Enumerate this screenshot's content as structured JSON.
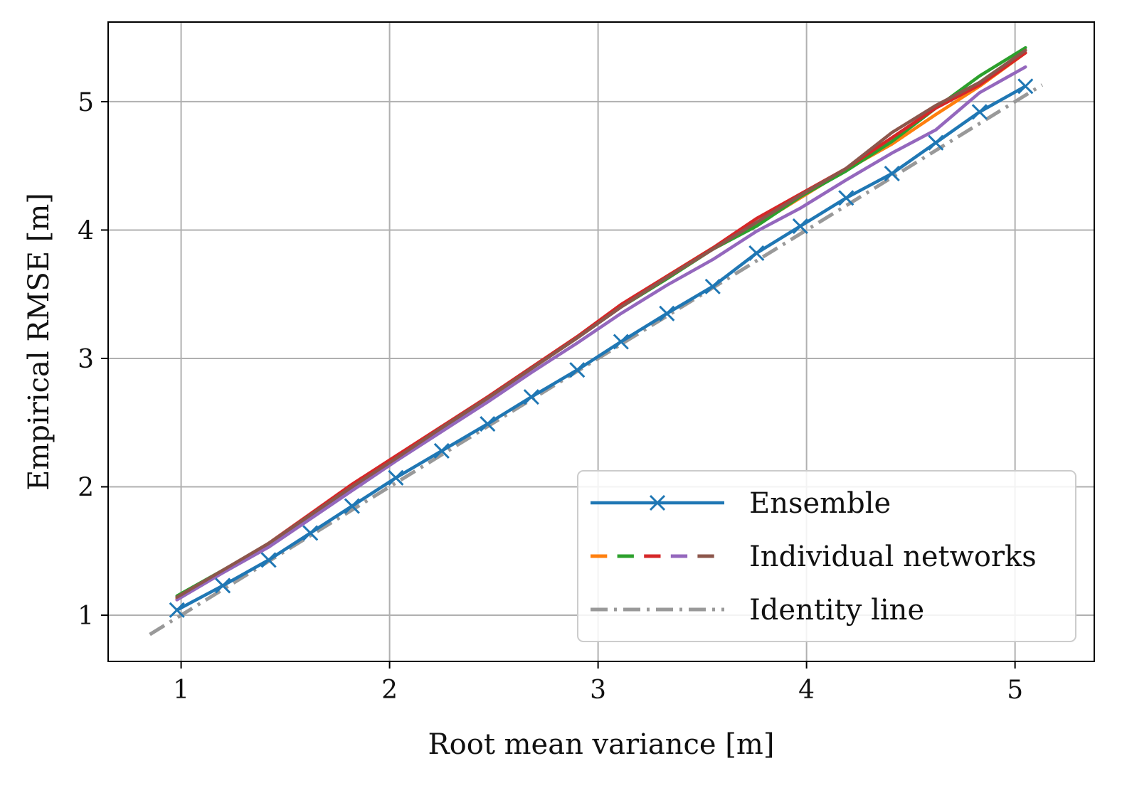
{
  "chart_data": {
    "type": "line",
    "xlabel": "Root mean variance [m]",
    "ylabel": "Empirical RMSE [m]",
    "xlim": [
      0.65,
      5.38
    ],
    "ylim": [
      0.64,
      5.62
    ],
    "xticks": [
      1,
      2,
      3,
      4,
      5
    ],
    "yticks": [
      1,
      2,
      3,
      4,
      5
    ],
    "xtick_labels": [
      "1",
      "2",
      "3",
      "4",
      "5"
    ],
    "ytick_labels": [
      "1",
      "2",
      "3",
      "4",
      "5"
    ],
    "grid": true,
    "legend_position": "lower-right",
    "legend": [
      "Ensemble",
      "Individual networks",
      "Identity line"
    ],
    "individual_colors": [
      "#ff7f0e",
      "#2ca02c",
      "#d62728",
      "#9467bd",
      "#8c564b"
    ],
    "series": [
      {
        "name": "Identity line",
        "color": "#999999",
        "style": "dashdot",
        "x": [
          0.85,
          5.13
        ],
        "y": [
          0.85,
          5.13
        ]
      },
      {
        "color": "#ff7f0e",
        "x": [
          0.98,
          1.2,
          1.42,
          1.62,
          1.82,
          2.03,
          2.25,
          2.47,
          2.68,
          2.9,
          3.11,
          3.33,
          3.55,
          3.76,
          3.97,
          4.19,
          4.41,
          4.62,
          4.83,
          5.05
        ],
        "y": [
          1.13,
          1.34,
          1.55,
          1.78,
          2.0,
          2.22,
          2.45,
          2.69,
          2.92,
          3.16,
          3.41,
          3.64,
          3.86,
          4.04,
          4.25,
          4.47,
          4.67,
          4.9,
          5.12,
          5.38
        ]
      },
      {
        "color": "#2ca02c",
        "x": [
          0.98,
          1.2,
          1.42,
          1.62,
          1.82,
          2.03,
          2.25,
          2.47,
          2.68,
          2.9,
          3.11,
          3.33,
          3.55,
          3.76,
          3.97,
          4.19,
          4.41,
          4.62,
          4.83,
          5.05
        ],
        "y": [
          1.15,
          1.35,
          1.55,
          1.77,
          1.98,
          2.21,
          2.45,
          2.69,
          2.92,
          3.16,
          3.4,
          3.62,
          3.85,
          4.03,
          4.26,
          4.46,
          4.69,
          4.95,
          5.2,
          5.42
        ]
      },
      {
        "color": "#d62728",
        "x": [
          0.98,
          1.2,
          1.42,
          1.62,
          1.82,
          2.03,
          2.25,
          2.47,
          2.68,
          2.9,
          3.11,
          3.33,
          3.55,
          3.76,
          3.97,
          4.19,
          4.41,
          4.62,
          4.83,
          5.05
        ],
        "y": [
          1.12,
          1.34,
          1.56,
          1.79,
          2.02,
          2.24,
          2.47,
          2.7,
          2.93,
          3.17,
          3.42,
          3.64,
          3.86,
          4.09,
          4.28,
          4.48,
          4.72,
          4.95,
          5.13,
          5.38
        ]
      },
      {
        "color": "#9467bd",
        "x": [
          0.98,
          1.2,
          1.42,
          1.62,
          1.82,
          2.03,
          2.25,
          2.47,
          2.68,
          2.9,
          3.11,
          3.33,
          3.55,
          3.76,
          3.97,
          4.19,
          4.41,
          4.62,
          4.83,
          5.05
        ],
        "y": [
          1.12,
          1.33,
          1.53,
          1.75,
          1.97,
          2.2,
          2.43,
          2.66,
          2.89,
          3.12,
          3.35,
          3.57,
          3.77,
          3.99,
          4.17,
          4.39,
          4.6,
          4.78,
          5.07,
          5.27
        ]
      },
      {
        "color": "#8c564b",
        "x": [
          0.98,
          1.2,
          1.42,
          1.62,
          1.82,
          2.03,
          2.25,
          2.47,
          2.68,
          2.9,
          3.11,
          3.33,
          3.55,
          3.76,
          3.97,
          4.19,
          4.41,
          4.62,
          4.83,
          5.05
        ],
        "y": [
          1.14,
          1.35,
          1.56,
          1.78,
          2.0,
          2.22,
          2.46,
          2.69,
          2.92,
          3.16,
          3.4,
          3.63,
          3.85,
          4.06,
          4.27,
          4.48,
          4.76,
          4.97,
          5.15,
          5.4
        ]
      },
      {
        "name": "Ensemble",
        "color": "#1f77b4",
        "marker": "x",
        "x": [
          0.98,
          1.2,
          1.42,
          1.62,
          1.82,
          2.03,
          2.25,
          2.47,
          2.68,
          2.9,
          3.11,
          3.33,
          3.55,
          3.76,
          3.97,
          4.19,
          4.41,
          4.62,
          4.83,
          5.05
        ],
        "y": [
          1.04,
          1.23,
          1.43,
          1.64,
          1.85,
          2.07,
          2.28,
          2.49,
          2.7,
          2.91,
          3.13,
          3.35,
          3.56,
          3.82,
          4.03,
          4.25,
          4.44,
          4.68,
          4.92,
          5.12
        ]
      }
    ]
  }
}
